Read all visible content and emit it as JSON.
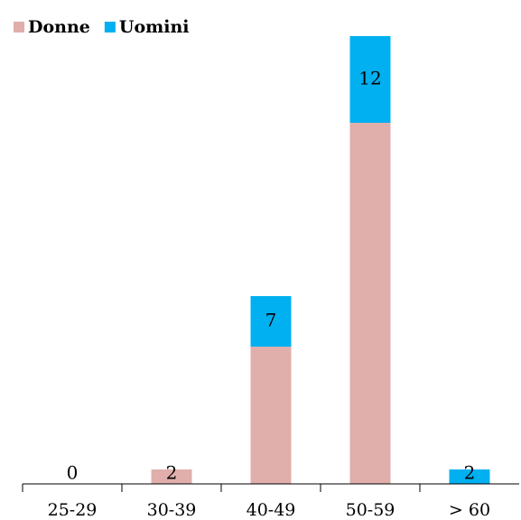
{
  "chart_data": {
    "type": "bar",
    "stacked": true,
    "categories": [
      "25-29",
      "30-39",
      "40-49",
      "50-59",
      "> 60"
    ],
    "series": [
      {
        "name": "Donne",
        "color": "#e0afab",
        "values": [
          0,
          2,
          19,
          50,
          0
        ]
      },
      {
        "name": "Uomini",
        "color": "#00b0f0",
        "values": [
          0,
          0,
          7,
          12,
          2
        ]
      }
    ],
    "ylim": [
      0,
      62
    ],
    "legend": "top-left"
  }
}
